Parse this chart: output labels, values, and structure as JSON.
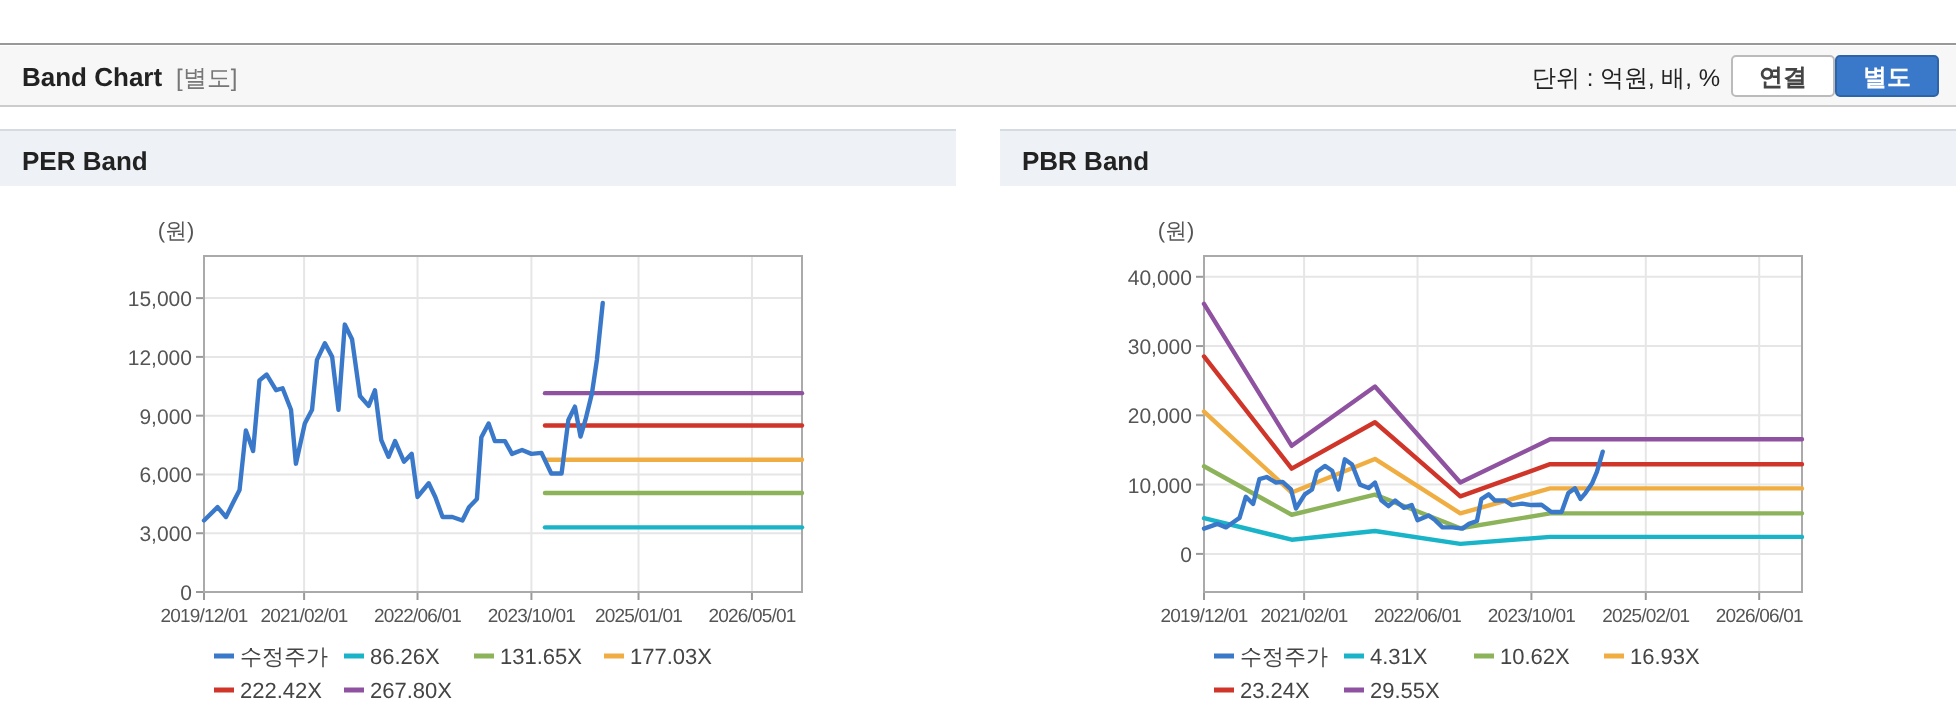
{
  "chart_data": [
    {
      "type": "other",
      "title": "Band Chart",
      "subtitle": "[별도]",
      "annotations": [
        "단위 : 억원, 배, %",
        "연결",
        "별도"
      ]
    },
    {
      "type": "line",
      "title": "PER Band",
      "ylabel": "(원)",
      "ylim": [
        0,
        17150
      ],
      "yticks": [
        0,
        {
          "value": 3000,
          "label": "3,000"
        },
        {
          "value": 6000,
          "label": "6,000"
        },
        {
          "value": 9000,
          "label": "9,000"
        },
        {
          "value": 12000,
          "label": "12,000"
        },
        {
          "value": 15000,
          "label": "15,000"
        }
      ],
      "xlim": [
        "2019-12-01",
        "2026-12-01"
      ],
      "xticks": [
        {
          "value": "2019-12-01",
          "label": "2019/12/01"
        },
        {
          "value": "2021-02-01",
          "label": "2021/02/01"
        },
        {
          "value": "2022-06-01",
          "label": "2022/06/01"
        },
        {
          "value": "2023-10-01",
          "label": "2023/10/01"
        },
        {
          "value": "2025-01-01",
          "label": "2025/01/01"
        },
        {
          "value": "2026-05-01",
          "label": "2026/05/01"
        }
      ],
      "grid": true,
      "legend": "bottom",
      "marker": "none",
      "series": [
        {
          "name": "수정주가",
          "color": "#3a78c9",
          "x": [
            "2019-12-01",
            "2020-01-28",
            "2020-03-04",
            "2020-04-01",
            "2020-05-01",
            "2020-05-28",
            "2020-06-28",
            "2020-07-25",
            "2020-08-25",
            "2020-10-04",
            "2020-11-01",
            "2020-12-07",
            "2020-12-28",
            "2021-02-04",
            "2021-03-07",
            "2021-03-28",
            "2021-05-01",
            "2021-06-01",
            "2021-06-28",
            "2021-07-25",
            "2021-08-25",
            "2021-09-28",
            "2021-11-04",
            "2021-12-01",
            "2021-12-28",
            "2022-01-28",
            "2022-02-25",
            "2022-04-04",
            "2022-05-07",
            "2022-06-01",
            "2022-07-19",
            "2022-08-16",
            "2022-09-16",
            "2022-10-28",
            "2022-12-10",
            "2023-01-07",
            "2023-02-10",
            "2023-03-01",
            "2023-04-01",
            "2023-04-28",
            "2023-06-10",
            "2023-07-10",
            "2023-08-22",
            "2023-10-01",
            "2023-11-13",
            "2023-12-25",
            "2024-02-07",
            "2024-03-07",
            "2024-04-04",
            "2024-04-28",
            "2024-05-19",
            "2024-06-16",
            "2024-07-07",
            "2024-08-01"
          ],
          "values": [
            3650,
            4330,
            3830,
            4500,
            5200,
            8250,
            7200,
            10800,
            11100,
            10300,
            10400,
            9300,
            6550,
            8600,
            9300,
            11850,
            12700,
            12000,
            9300,
            13650,
            12900,
            10000,
            9500,
            10300,
            7750,
            6900,
            7700,
            6650,
            7050,
            4850,
            5550,
            4850,
            3830,
            3830,
            3650,
            4330,
            4750,
            7900,
            8600,
            7700,
            7700,
            7050,
            7250,
            7050,
            7100,
            6050,
            6050,
            8780,
            9460,
            7930,
            8780,
            10150,
            11850,
            14750
          ]
        },
        {
          "name": "86.26X",
          "color": "#1ab4c8",
          "x": [
            "2023-11-28",
            "2026-12-01"
          ],
          "values": [
            3300,
            3300
          ]
        },
        {
          "name": "131.65X",
          "color": "#8cb35a",
          "x": [
            "2023-11-28",
            "2026-12-01"
          ],
          "values": [
            5050,
            5050
          ]
        },
        {
          "name": "177.03X",
          "color": "#f0ad42",
          "x": [
            "2023-11-28",
            "2026-12-01"
          ],
          "values": [
            6750,
            6750
          ]
        },
        {
          "name": "222.42X",
          "color": "#d0352a",
          "x": [
            "2023-11-28",
            "2026-12-01"
          ],
          "values": [
            8500,
            8500
          ]
        },
        {
          "name": "267.80X",
          "color": "#8f52a0",
          "x": [
            "2023-11-28",
            "2026-12-01"
          ],
          "values": [
            10150,
            10150
          ]
        }
      ]
    },
    {
      "type": "line",
      "title": "PBR Band",
      "ylabel": "(원)",
      "ylim": [
        -5500,
        43000
      ],
      "yticks": [
        0,
        {
          "value": 10000,
          "label": "10,000"
        },
        {
          "value": 20000,
          "label": "20,000"
        },
        {
          "value": 30000,
          "label": "30,000"
        },
        {
          "value": 40000,
          "label": "40,000"
        }
      ],
      "xlim": [
        "2019-12-01",
        "2026-12-01"
      ],
      "xticks": [
        {
          "value": "2019-12-01",
          "label": "2019/12/01"
        },
        {
          "value": "2021-02-01",
          "label": "2021/02/01"
        },
        {
          "value": "2022-06-01",
          "label": "2022/06/01"
        },
        {
          "value": "2023-10-01",
          "label": "2023/10/01"
        },
        {
          "value": "2025-02-01",
          "label": "2025/02/01"
        },
        {
          "value": "2026-06-01",
          "label": "2026/06/01"
        }
      ],
      "grid": true,
      "legend": "bottom",
      "marker": "none",
      "series": [
        {
          "name": "수정주가",
          "color": "#3a78c9",
          "x": [
            "2019-12-01",
            "2020-01-28",
            "2020-03-04",
            "2020-04-01",
            "2020-05-01",
            "2020-05-28",
            "2020-06-28",
            "2020-07-25",
            "2020-08-25",
            "2020-10-04",
            "2020-11-01",
            "2020-12-07",
            "2020-12-28",
            "2021-02-04",
            "2021-03-07",
            "2021-03-28",
            "2021-05-01",
            "2021-06-01",
            "2021-06-28",
            "2021-07-25",
            "2021-08-25",
            "2021-09-28",
            "2021-11-04",
            "2021-12-01",
            "2021-12-28",
            "2022-01-28",
            "2022-02-25",
            "2022-04-04",
            "2022-05-07",
            "2022-06-01",
            "2022-07-19",
            "2022-08-16",
            "2022-09-16",
            "2022-10-28",
            "2022-12-10",
            "2023-01-07",
            "2023-02-10",
            "2023-03-01",
            "2023-04-01",
            "2023-04-28",
            "2023-06-10",
            "2023-07-10",
            "2023-08-22",
            "2023-10-01",
            "2023-11-13",
            "2023-12-25",
            "2024-02-07",
            "2024-03-07",
            "2024-04-04",
            "2024-04-28",
            "2024-05-19",
            "2024-06-16",
            "2024-07-07",
            "2024-08-01"
          ],
          "values": [
            3650,
            4330,
            3830,
            4500,
            5200,
            8250,
            7200,
            10800,
            11100,
            10300,
            10400,
            9300,
            6550,
            8600,
            9300,
            11850,
            12700,
            12000,
            9300,
            13650,
            12900,
            10000,
            9500,
            10300,
            7750,
            6900,
            7700,
            6650,
            7050,
            4850,
            5550,
            4850,
            3830,
            3830,
            3650,
            4330,
            4750,
            7900,
            8600,
            7700,
            7700,
            7050,
            7250,
            7050,
            7100,
            6050,
            6050,
            8780,
            9460,
            7930,
            8780,
            10150,
            11850,
            14750
          ]
        },
        {
          "name": "4.31X",
          "color": "#1ab4c8",
          "x": [
            "2019-12-01",
            "2020-12-10",
            "2021-12-01",
            "2022-12-01",
            "2023-12-20",
            "2026-12-01"
          ],
          "values": [
            5150,
            2050,
            3300,
            1450,
            2450,
            2450
          ]
        },
        {
          "name": "10.62X",
          "color": "#8cb35a",
          "x": [
            "2019-12-01",
            "2020-12-10",
            "2021-12-01",
            "2022-12-01",
            "2023-12-20",
            "2026-12-01"
          ],
          "values": [
            12650,
            5650,
            8550,
            3700,
            5850,
            5850
          ]
        },
        {
          "name": "16.93X",
          "color": "#f0ad42",
          "x": [
            "2019-12-01",
            "2020-12-10",
            "2021-12-01",
            "2022-12-01",
            "2023-12-20",
            "2026-12-01"
          ],
          "values": [
            20550,
            8850,
            13700,
            5850,
            9450,
            9450
          ]
        },
        {
          "name": "23.24X",
          "color": "#d0352a",
          "x": [
            "2019-12-01",
            "2020-12-10",
            "2021-12-01",
            "2022-12-01",
            "2023-12-20",
            "2026-12-01"
          ],
          "values": [
            28500,
            12300,
            19000,
            8300,
            12950,
            12950
          ]
        },
        {
          "name": "29.55X",
          "color": "#8f52a0",
          "x": [
            "2019-12-01",
            "2020-12-10",
            "2021-12-01",
            "2022-12-01",
            "2023-12-20",
            "2026-12-01"
          ],
          "values": [
            36100,
            15600,
            24150,
            10300,
            16550,
            16550
          ]
        }
      ]
    }
  ]
}
